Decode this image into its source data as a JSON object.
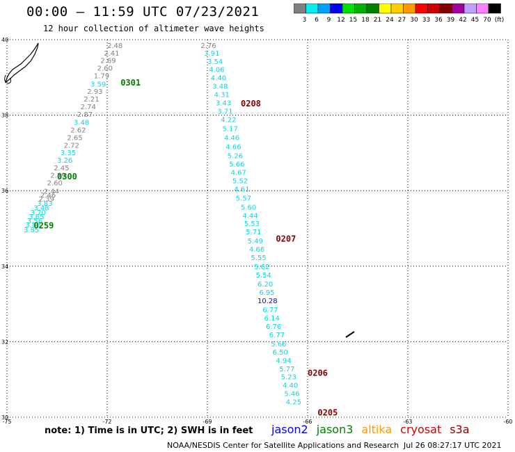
{
  "header": {
    "title": "00:00 – 11:59 UTC 07/23/2021",
    "subtitle": "12 hour collection of altimeter wave heights"
  },
  "colorbar": {
    "labels": [
      "3",
      "6",
      "9",
      "12",
      "15",
      "18",
      "21",
      "24",
      "27",
      "30",
      "33",
      "36",
      "39",
      "42",
      "45",
      "70",
      "(ft)"
    ],
    "colors": [
      "#808080",
      "#00f0f0",
      "#00a0ff",
      "#0000ff",
      "#00e000",
      "#00b000",
      "#008000",
      "#ffff00",
      "#ffcc00",
      "#ff9900",
      "#ff0000",
      "#cc0000",
      "#800000",
      "#a000a0",
      "#c0a0ff",
      "#ff80ff",
      "#000000"
    ]
  },
  "map": {
    "lon_range": [
      -75,
      -60
    ],
    "lat_range": [
      30,
      40
    ],
    "x_ticks": [
      -75,
      -72,
      -69,
      -66,
      -63,
      -60
    ],
    "y_ticks": [
      40,
      38,
      36,
      34,
      32,
      30
    ],
    "x_tick_labels": [
      "-75",
      "-72",
      "-69",
      "-66",
      "-63",
      "-60"
    ],
    "y_tick_labels": [
      "40",
      "38",
      "36",
      "34",
      "32",
      "30"
    ],
    "gridlines": true,
    "tracks": [
      {
        "pass_labels": [
          {
            "text": "0301",
            "lon": -71.6,
            "lat": 38.78,
            "color": "#008000"
          },
          {
            "text": "0300",
            "lon": -73.5,
            "lat": 36.3,
            "color": "#008000"
          },
          {
            "text": "0259",
            "lon": -74.2,
            "lat": 35.0,
            "color": "#008000"
          }
        ],
        "points": [
          {
            "v": "2.48",
            "lon": -72.0,
            "lat": 39.78,
            "c": "#808080"
          },
          {
            "v": "2.41",
            "lon": -72.1,
            "lat": 39.58,
            "c": "#808080"
          },
          {
            "v": "2.69",
            "lon": -72.2,
            "lat": 39.38,
            "c": "#808080"
          },
          {
            "v": "2.60",
            "lon": -72.3,
            "lat": 39.18,
            "c": "#808080"
          },
          {
            "v": "1.79",
            "lon": -72.4,
            "lat": 38.98,
            "c": "#808080"
          },
          {
            "v": "3.59",
            "lon": -72.5,
            "lat": 38.76,
            "c": "#00d8e0"
          },
          {
            "v": "2.93",
            "lon": -72.6,
            "lat": 38.56,
            "c": "#808080"
          },
          {
            "v": "2.21",
            "lon": -72.7,
            "lat": 38.36,
            "c": "#808080"
          },
          {
            "v": "2.74",
            "lon": -72.8,
            "lat": 38.16,
            "c": "#808080"
          },
          {
            "v": "2.87",
            "lon": -72.9,
            "lat": 37.96,
            "c": "#808080"
          },
          {
            "v": "3.48",
            "lon": -73.0,
            "lat": 37.74,
            "c": "#00d8e0"
          },
          {
            "v": "2.62",
            "lon": -73.1,
            "lat": 37.54,
            "c": "#808080"
          },
          {
            "v": "2.65",
            "lon": -73.2,
            "lat": 37.34,
            "c": "#808080"
          },
          {
            "v": "2.72",
            "lon": -73.3,
            "lat": 37.14,
            "c": "#808080"
          },
          {
            "v": "3.35",
            "lon": -73.4,
            "lat": 36.94,
            "c": "#00d8e0"
          },
          {
            "v": "3.26",
            "lon": -73.5,
            "lat": 36.74,
            "c": "#00d8e0"
          },
          {
            "v": "2.45",
            "lon": -73.6,
            "lat": 36.54,
            "c": "#808080"
          },
          {
            "v": "2.89",
            "lon": -73.7,
            "lat": 36.34,
            "c": "#808080"
          },
          {
            "v": "2.60",
            "lon": -73.8,
            "lat": 36.14,
            "c": "#808080"
          },
          {
            "v": "2.44",
            "lon": -73.9,
            "lat": 35.92,
            "c": "#808080"
          },
          {
            "v": "2.46",
            "lon": -74.0,
            "lat": 35.82,
            "c": "#808080"
          },
          {
            "v": "2.39",
            "lon": -74.05,
            "lat": 35.72,
            "c": "#808080"
          },
          {
            "v": "3.83",
            "lon": -74.1,
            "lat": 35.6,
            "c": "#00d8e0"
          },
          {
            "v": "3.48",
            "lon": -74.2,
            "lat": 35.48,
            "c": "#00d8e0"
          },
          {
            "v": "3.70",
            "lon": -74.3,
            "lat": 35.36,
            "c": "#00d8e0"
          },
          {
            "v": "3.65",
            "lon": -74.35,
            "lat": 35.25,
            "c": "#00d8e0"
          },
          {
            "v": "3.56",
            "lon": -74.4,
            "lat": 35.14,
            "c": "#00d8e0"
          },
          {
            "v": "3.88",
            "lon": -74.45,
            "lat": 35.03,
            "c": "#00d8e0"
          },
          {
            "v": "3.85",
            "lon": -74.5,
            "lat": 34.9,
            "c": "#00d8e0"
          }
        ]
      },
      {
        "pass_labels": [
          {
            "text": "0208",
            "lon": -68.0,
            "lat": 38.23,
            "color": "#800000"
          }
        ],
        "points": [
          {
            "v": "2.76",
            "lon": -69.2,
            "lat": 39.78,
            "c": "#808080"
          },
          {
            "v": "3.91",
            "lon": -69.1,
            "lat": 39.58,
            "c": "#00d8e0"
          },
          {
            "v": "3.54",
            "lon": -69.0,
            "lat": 39.36,
            "c": "#00d8e0"
          },
          {
            "v": "4.06",
            "lon": -68.95,
            "lat": 39.14,
            "c": "#00d8e0"
          },
          {
            "v": "4.40",
            "lon": -68.9,
            "lat": 38.92,
            "c": "#00d8e0"
          },
          {
            "v": "3.48",
            "lon": -68.85,
            "lat": 38.7,
            "c": "#00d8e0"
          },
          {
            "v": "4.31",
            "lon": -68.8,
            "lat": 38.48,
            "c": "#00d8e0"
          },
          {
            "v": "3.43",
            "lon": -68.75,
            "lat": 38.26,
            "c": "#00d8e0"
          },
          {
            "v": "3.71",
            "lon": -68.7,
            "lat": 38.04,
            "c": "#00d8e0"
          }
        ]
      },
      {
        "pass_labels": [
          {
            "text": "0207",
            "lon": -66.95,
            "lat": 34.65,
            "color": "#800000"
          },
          {
            "text": "0206",
            "lon": -66.0,
            "lat": 31.1,
            "color": "#800000"
          },
          {
            "text": "0205",
            "lon": -65.7,
            "lat": 30.05,
            "color": "#800000"
          }
        ],
        "points": [
          {
            "v": "4.22",
            "lon": -68.6,
            "lat": 37.82,
            "c": "#00d8e0"
          },
          {
            "v": "5.17",
            "lon": -68.55,
            "lat": 37.58,
            "c": "#00d8e0"
          },
          {
            "v": "4.46",
            "lon": -68.5,
            "lat": 37.34,
            "c": "#00d8e0"
          },
          {
            "v": "4.66",
            "lon": -68.45,
            "lat": 37.1,
            "c": "#00d8e0"
          },
          {
            "v": "5.26",
            "lon": -68.4,
            "lat": 36.86,
            "c": "#00d8e0"
          },
          {
            "v": "5.66",
            "lon": -68.35,
            "lat": 36.64,
            "c": "#00d8e0"
          },
          {
            "v": "4.67",
            "lon": -68.3,
            "lat": 36.42,
            "c": "#00d8e0"
          },
          {
            "v": "5.52",
            "lon": -68.25,
            "lat": 36.2,
            "c": "#00d8e0"
          },
          {
            "v": "4.61",
            "lon": -68.2,
            "lat": 35.98,
            "c": "#00d8e0"
          },
          {
            "v": "5.57",
            "lon": -68.15,
            "lat": 35.74,
            "c": "#00d8e0"
          },
          {
            "v": "5.60",
            "lon": -68.0,
            "lat": 35.5,
            "c": "#00d8e0"
          },
          {
            "v": "4.44",
            "lon": -67.95,
            "lat": 35.28,
            "c": "#00d8e0"
          },
          {
            "v": "5.53",
            "lon": -67.9,
            "lat": 35.06,
            "c": "#00d8e0"
          },
          {
            "v": "5.71",
            "lon": -67.85,
            "lat": 34.84,
            "c": "#00d8e0"
          },
          {
            "v": "5.49",
            "lon": -67.8,
            "lat": 34.6,
            "c": "#00d8e0"
          },
          {
            "v": "4.66",
            "lon": -67.75,
            "lat": 34.38,
            "c": "#00d8e0"
          },
          {
            "v": "5.55",
            "lon": -67.7,
            "lat": 34.16,
            "c": "#00d8e0"
          },
          {
            "v": "5.62",
            "lon": -67.6,
            "lat": 33.92,
            "c": "#00d8e0"
          },
          {
            "v": "5.54",
            "lon": -67.55,
            "lat": 33.7,
            "c": "#00d8e0"
          },
          {
            "v": "6.20",
            "lon": -67.5,
            "lat": 33.46,
            "c": "#00d8e0"
          },
          {
            "v": "6.95",
            "lon": -67.45,
            "lat": 33.24,
            "c": "#00d8e0"
          },
          {
            "v": "10.28",
            "lon": -67.5,
            "lat": 33.02,
            "c": "#0000ff"
          },
          {
            "v": "6.77",
            "lon": -67.35,
            "lat": 32.78,
            "c": "#00d8e0"
          },
          {
            "v": "6.14",
            "lon": -67.3,
            "lat": 32.56,
            "c": "#00d8e0"
          },
          {
            "v": "6.76",
            "lon": -67.25,
            "lat": 32.34,
            "c": "#00d8e0"
          },
          {
            "v": "6.77",
            "lon": -67.15,
            "lat": 32.12,
            "c": "#00d8e0"
          },
          {
            "v": "5.66",
            "lon": -67.1,
            "lat": 31.88,
            "c": "#00d8e0"
          },
          {
            "v": "6.50",
            "lon": -67.05,
            "lat": 31.66,
            "c": "#00d8e0"
          },
          {
            "v": "4.94",
            "lon": -66.95,
            "lat": 31.44,
            "c": "#00d8e0"
          },
          {
            "v": "5.77",
            "lon": -66.85,
            "lat": 31.22,
            "c": "#00d8e0"
          },
          {
            "v": "5.23",
            "lon": -66.8,
            "lat": 31.0,
            "c": "#00d8e0"
          },
          {
            "v": "4.40",
            "lon": -66.75,
            "lat": 30.78,
            "c": "#00d8e0"
          },
          {
            "v": "5.46",
            "lon": -66.7,
            "lat": 30.56,
            "c": "#00d8e0"
          },
          {
            "v": "4.25",
            "lon": -66.65,
            "lat": 30.34,
            "c": "#00d8e0"
          }
        ]
      }
    ]
  },
  "footer": {
    "note": "note: 1) Time is in UTC; 2) SWH is in feet",
    "legend": [
      {
        "name": "jason2",
        "color": "#0000ff"
      },
      {
        "name": "jason3",
        "color": "#008000"
      },
      {
        "name": "altika",
        "color": "#ff9900"
      },
      {
        "name": "cryosat",
        "color": "#cc0000"
      },
      {
        "name": "s3a",
        "color": "#800000"
      }
    ],
    "credit": "NOAA/NESDIS Center for Satellite Applications and Research",
    "timestamp": "Jul 26 08:27:17 UTC 2021"
  }
}
